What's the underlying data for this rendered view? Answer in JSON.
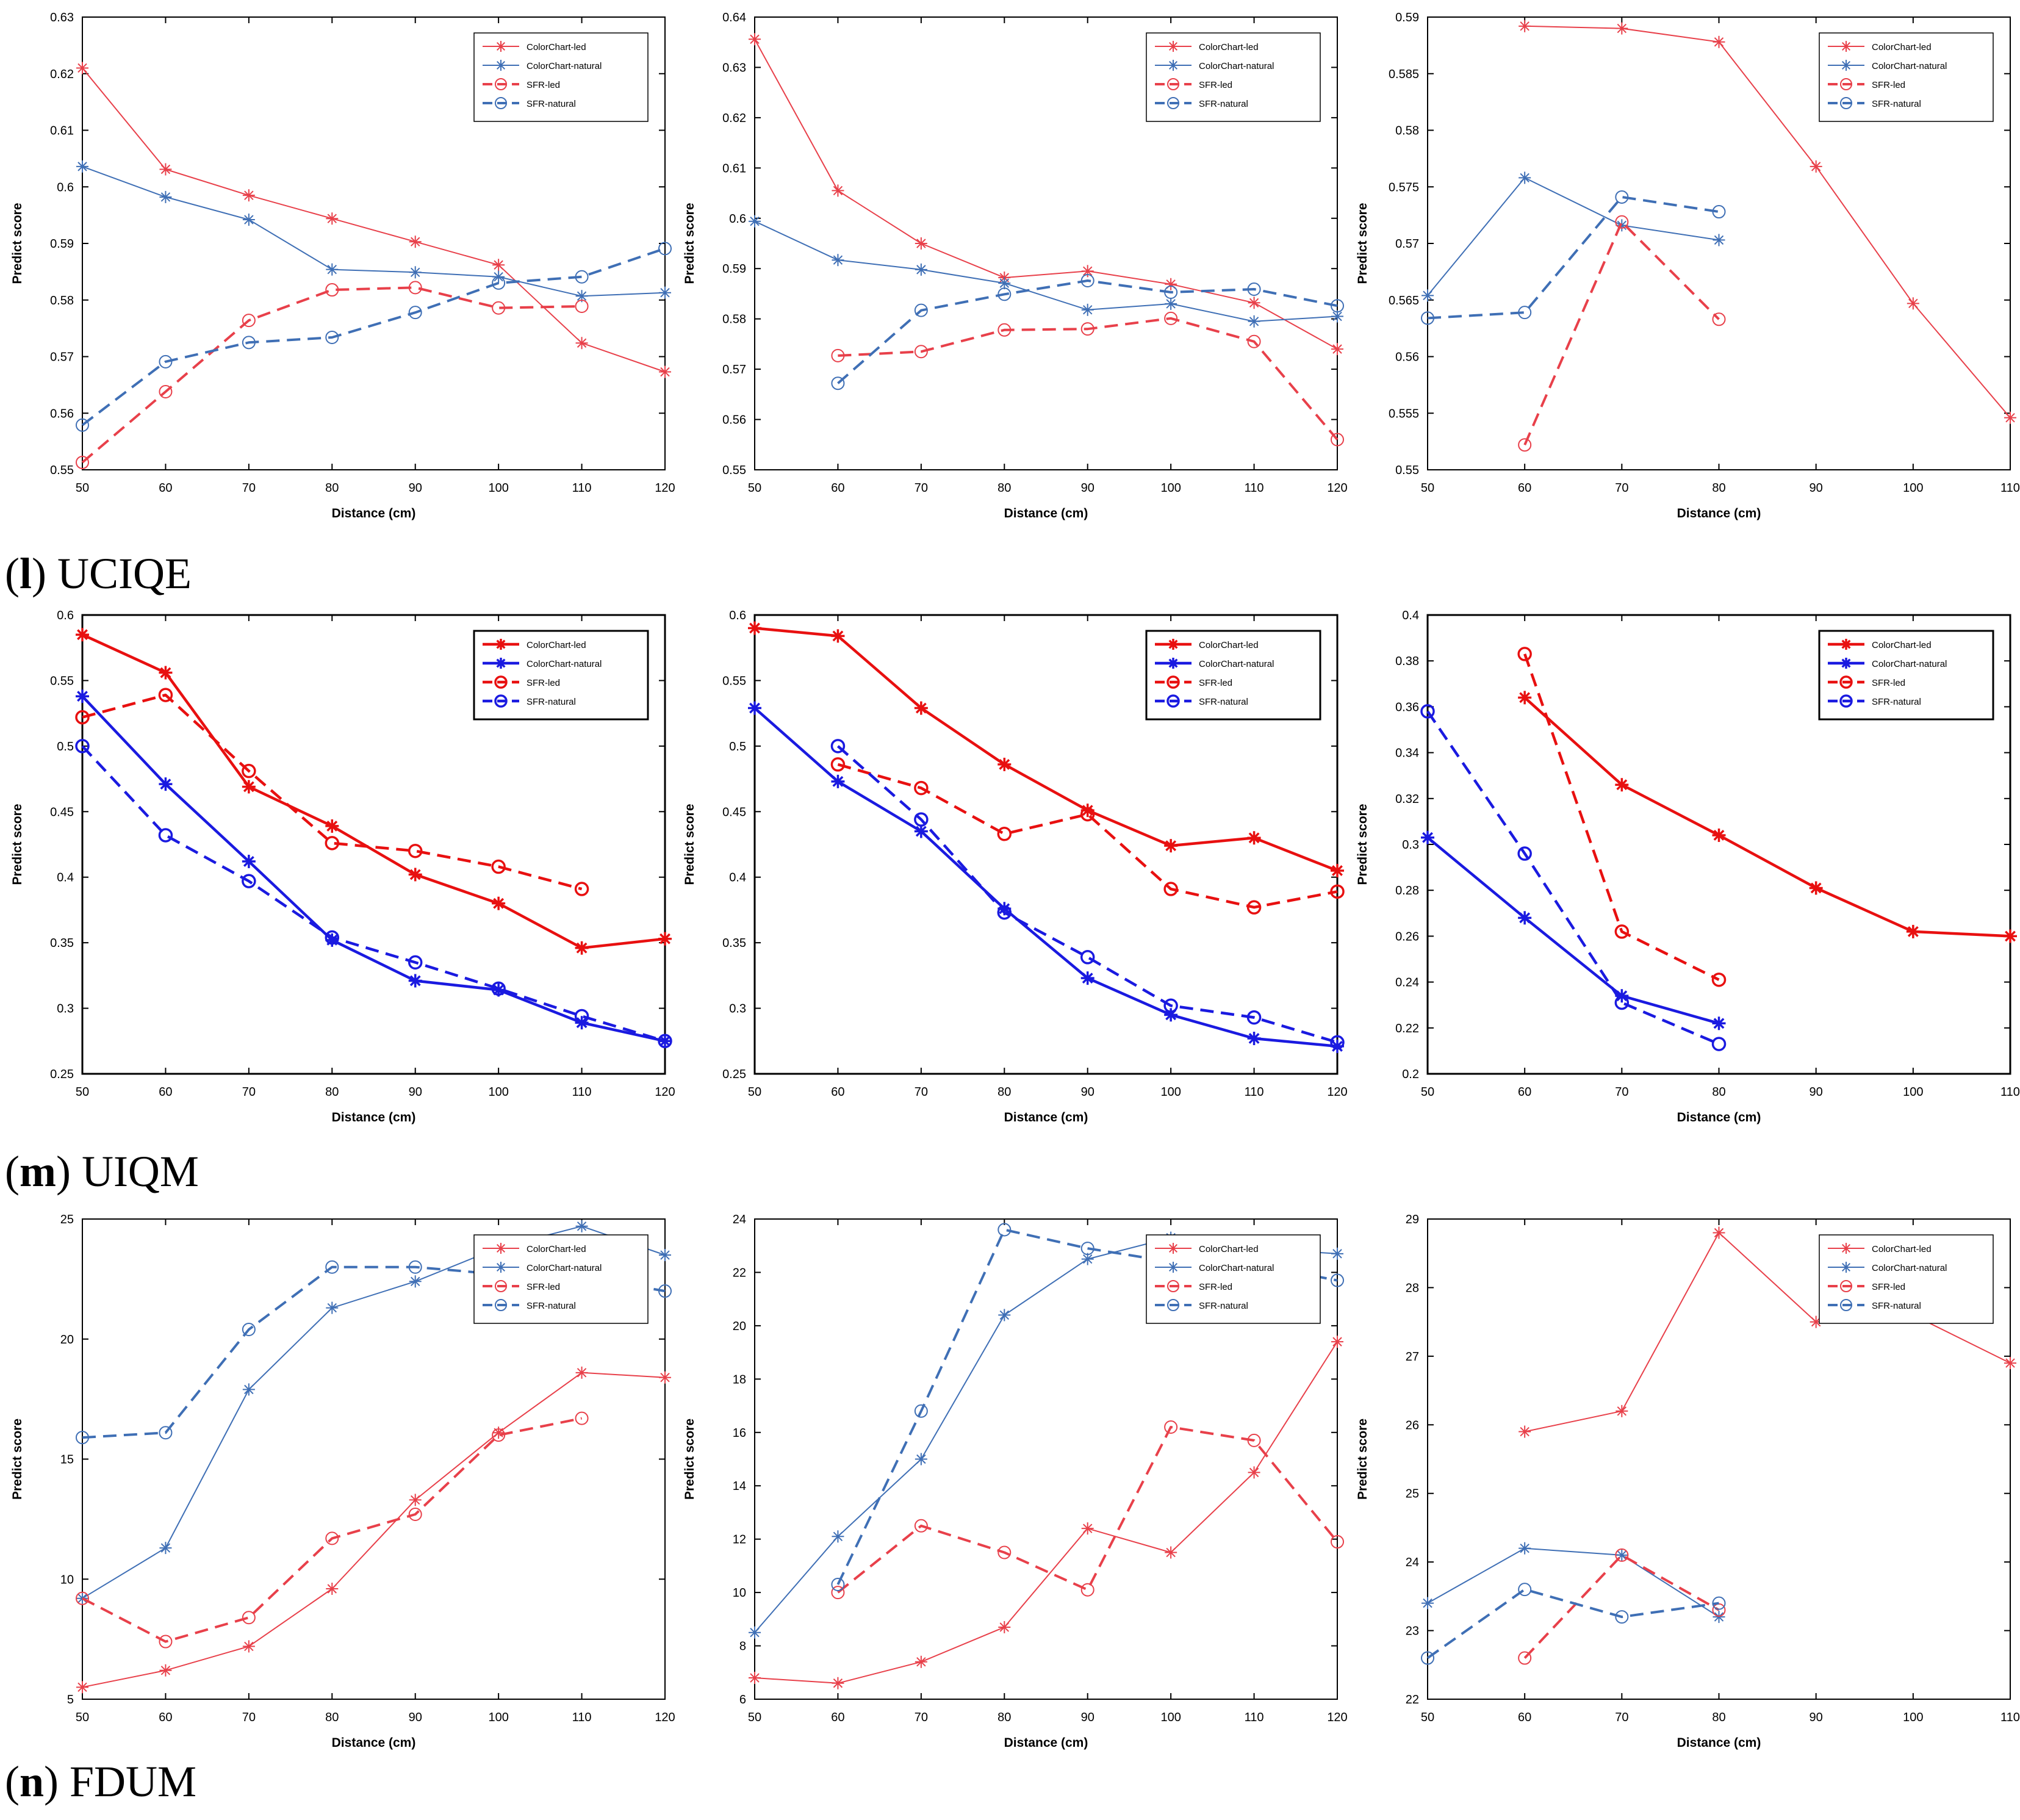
{
  "colors": {
    "thin_red": "#e8404a",
    "thin_blue": "#3f6fb5",
    "bold_red": "#e81010",
    "bold_blue": "#1a1ae0"
  },
  "legend_labels": [
    "ColorChart-led",
    "ColorChart-natural",
    "SFR-led",
    "SFR-natural"
  ],
  "captions": [
    {
      "letter": "l",
      "open": "(",
      "close": ")",
      "text": " UCIQE"
    },
    {
      "letter": "m",
      "open": "(",
      "close": ")",
      "text": " UIQM"
    },
    {
      "letter": "n",
      "open": "(",
      "close": ")",
      "text": " FDUM"
    }
  ],
  "chart_data": [
    {
      "type": "line",
      "row": 0,
      "col": 0,
      "style": "thin",
      "xlabel": "Distance (cm)",
      "ylabel": "Predict score",
      "xlim": [
        50,
        120
      ],
      "ylim": [
        0.55,
        0.63
      ],
      "xticks": [
        50,
        60,
        70,
        80,
        90,
        100,
        110,
        120
      ],
      "yticks": [
        0.55,
        0.56,
        0.57,
        0.58,
        0.59,
        0.6,
        0.61,
        0.62,
        0.63
      ],
      "ytick_labels": [
        "0.55",
        "0.56",
        "0.57",
        "0.58",
        "0.59",
        "0.6",
        "0.61",
        "0.62",
        "0.63"
      ],
      "series": [
        {
          "name": "ColorChart-led",
          "x": [
            50,
            60,
            70,
            80,
            90,
            100,
            110,
            120
          ],
          "values": [
            0.621,
            0.6031,
            0.5985,
            0.5944,
            0.5903,
            0.5862,
            0.5724,
            0.5673
          ]
        },
        {
          "name": "ColorChart-natural",
          "x": [
            50,
            60,
            70,
            80,
            90,
            100,
            110,
            120
          ],
          "values": [
            0.6036,
            0.5982,
            0.5942,
            0.5854,
            0.5849,
            0.5841,
            0.5807,
            0.5813
          ]
        },
        {
          "name": "SFR-led",
          "x": [
            50,
            60,
            70,
            80,
            90,
            100,
            110
          ],
          "values": [
            0.5513,
            0.5638,
            0.5764,
            0.5818,
            0.5822,
            0.5786,
            0.5789
          ]
        },
        {
          "name": "SFR-natural",
          "x": [
            50,
            60,
            70,
            80,
            90,
            100,
            110,
            120
          ],
          "values": [
            0.5579,
            0.5691,
            0.5725,
            0.5734,
            0.5778,
            0.583,
            0.5841,
            0.5891
          ]
        }
      ]
    },
    {
      "type": "line",
      "row": 0,
      "col": 1,
      "style": "thin",
      "xlabel": "Distance (cm)",
      "ylabel": "Predict score",
      "xlim": [
        50,
        120
      ],
      "ylim": [
        0.55,
        0.64
      ],
      "xticks": [
        50,
        60,
        70,
        80,
        90,
        100,
        110,
        120
      ],
      "yticks": [
        0.55,
        0.56,
        0.57,
        0.58,
        0.59,
        0.6,
        0.61,
        0.62,
        0.63,
        0.64
      ],
      "ytick_labels": [
        "0.55",
        "0.56",
        "0.57",
        "0.58",
        "0.59",
        "0.6",
        "0.61",
        "0.62",
        "0.63",
        "0.64"
      ],
      "series": [
        {
          "name": "ColorChart-led",
          "x": [
            50,
            60,
            70,
            80,
            90,
            100,
            110,
            120
          ],
          "values": [
            0.6356,
            0.6055,
            0.595,
            0.5882,
            0.5895,
            0.5869,
            0.5832,
            0.574
          ]
        },
        {
          "name": "ColorChart-natural",
          "x": [
            50,
            60,
            70,
            80,
            90,
            100,
            110,
            120
          ],
          "values": [
            0.5994,
            0.5917,
            0.5898,
            0.5871,
            0.5818,
            0.583,
            0.5795,
            0.5805
          ]
        },
        {
          "name": "SFR-led",
          "x": [
            60,
            70,
            80,
            90,
            100,
            110,
            120
          ],
          "values": [
            0.5727,
            0.5735,
            0.5778,
            0.578,
            0.5801,
            0.5755,
            0.556
          ]
        },
        {
          "name": "SFR-natural",
          "x": [
            60,
            70,
            80,
            90,
            100,
            110,
            120
          ],
          "values": [
            0.5672,
            0.5817,
            0.5849,
            0.5876,
            0.5853,
            0.5859,
            0.5826
          ]
        }
      ]
    },
    {
      "type": "line",
      "row": 0,
      "col": 2,
      "style": "thin",
      "xlabel": "Distance (cm)",
      "ylabel": "Predict score",
      "xlim": [
        50,
        110
      ],
      "ylim": [
        0.55,
        0.59
      ],
      "xticks": [
        50,
        60,
        70,
        80,
        90,
        100,
        110
      ],
      "yticks": [
        0.55,
        0.555,
        0.56,
        0.565,
        0.57,
        0.575,
        0.58,
        0.585,
        0.59
      ],
      "ytick_labels": [
        "0.55",
        "0.555",
        "0.56",
        "0.565",
        "0.57",
        "0.575",
        "0.58",
        "0.585",
        "0.59"
      ],
      "series": [
        {
          "name": "ColorChart-led",
          "x": [
            60,
            70,
            80,
            90,
            100,
            110
          ],
          "values": [
            0.5892,
            0.589,
            0.5878,
            0.5768,
            0.5647,
            0.5546
          ]
        },
        {
          "name": "ColorChart-natural",
          "x": [
            50,
            60,
            70,
            80
          ],
          "values": [
            0.5654,
            0.5758,
            0.5716,
            0.5703
          ]
        },
        {
          "name": "SFR-led",
          "x": [
            60,
            70,
            80
          ],
          "values": [
            0.5522,
            0.5719,
            0.5633
          ]
        },
        {
          "name": "SFR-natural",
          "x": [
            50,
            60,
            70,
            80
          ],
          "values": [
            0.5634,
            0.5639,
            0.5741,
            0.5728
          ]
        }
      ]
    },
    {
      "type": "line",
      "row": 1,
      "col": 0,
      "style": "bold",
      "xlabel": "Distance (cm)",
      "ylabel": "Predict score",
      "xlim": [
        50,
        120
      ],
      "ylim": [
        0.25,
        0.6
      ],
      "xticks": [
        50,
        60,
        70,
        80,
        90,
        100,
        110,
        120
      ],
      "yticks": [
        0.25,
        0.3,
        0.35,
        0.4,
        0.45,
        0.5,
        0.55,
        0.6
      ],
      "ytick_labels": [
        "0.25",
        "0.3",
        "0.35",
        "0.4",
        "0.45",
        "0.5",
        "0.55",
        "0.6"
      ],
      "series": [
        {
          "name": "ColorChart-led",
          "x": [
            50,
            60,
            70,
            80,
            90,
            100,
            110,
            120
          ],
          "values": [
            0.585,
            0.556,
            0.469,
            0.439,
            0.402,
            0.38,
            0.346,
            0.353
          ]
        },
        {
          "name": "ColorChart-natural",
          "x": [
            50,
            60,
            70,
            80,
            90,
            100,
            110,
            120
          ],
          "values": [
            0.538,
            0.471,
            0.412,
            0.352,
            0.321,
            0.314,
            0.289,
            0.275
          ]
        },
        {
          "name": "SFR-led",
          "x": [
            50,
            60,
            70,
            80,
            90,
            100,
            110
          ],
          "values": [
            0.522,
            0.539,
            0.481,
            0.426,
            0.42,
            0.408,
            0.391
          ]
        },
        {
          "name": "SFR-natural",
          "x": [
            50,
            60,
            70,
            80,
            90,
            100,
            110,
            120
          ],
          "values": [
            0.5,
            0.432,
            0.397,
            0.354,
            0.335,
            0.315,
            0.294,
            0.275
          ]
        }
      ]
    },
    {
      "type": "line",
      "row": 1,
      "col": 1,
      "style": "bold",
      "xlabel": "Distance (cm)",
      "ylabel": "Predict score",
      "xlim": [
        50,
        120
      ],
      "ylim": [
        0.25,
        0.6
      ],
      "xticks": [
        50,
        60,
        70,
        80,
        90,
        100,
        110,
        120
      ],
      "yticks": [
        0.25,
        0.3,
        0.35,
        0.4,
        0.45,
        0.5,
        0.55,
        0.6
      ],
      "ytick_labels": [
        "0.25",
        "0.3",
        "0.35",
        "0.4",
        "0.45",
        "0.5",
        "0.55",
        "0.6"
      ],
      "series": [
        {
          "name": "ColorChart-led",
          "x": [
            50,
            60,
            70,
            80,
            90,
            100,
            110,
            120
          ],
          "values": [
            0.59,
            0.584,
            0.529,
            0.486,
            0.451,
            0.424,
            0.43,
            0.405
          ]
        },
        {
          "name": "ColorChart-natural",
          "x": [
            50,
            60,
            70,
            80,
            90,
            100,
            110,
            120
          ],
          "values": [
            0.529,
            0.473,
            0.435,
            0.376,
            0.323,
            0.295,
            0.277,
            0.271
          ]
        },
        {
          "name": "SFR-led",
          "x": [
            60,
            70,
            80,
            90,
            100,
            110,
            120
          ],
          "values": [
            0.486,
            0.468,
            0.433,
            0.448,
            0.391,
            0.377,
            0.389
          ]
        },
        {
          "name": "SFR-natural",
          "x": [
            60,
            70,
            80,
            90,
            100,
            110,
            120
          ],
          "values": [
            0.5,
            0.444,
            0.373,
            0.339,
            0.302,
            0.293,
            0.274
          ]
        }
      ]
    },
    {
      "type": "line",
      "row": 1,
      "col": 2,
      "style": "bold",
      "xlabel": "Distance (cm)",
      "ylabel": "Predict score",
      "xlim": [
        50,
        110
      ],
      "ylim": [
        0.2,
        0.4
      ],
      "xticks": [
        50,
        60,
        70,
        80,
        90,
        100,
        110
      ],
      "yticks": [
        0.2,
        0.22,
        0.24,
        0.26,
        0.28,
        0.3,
        0.32,
        0.34,
        0.36,
        0.38,
        0.4
      ],
      "ytick_labels": [
        "0.2",
        "0.22",
        "0.24",
        "0.26",
        "0.28",
        "0.3",
        "0.32",
        "0.34",
        "0.36",
        "0.38",
        "0.4"
      ],
      "series": [
        {
          "name": "ColorChart-led",
          "x": [
            60,
            70,
            80,
            90,
            100,
            110
          ],
          "values": [
            0.364,
            0.326,
            0.304,
            0.281,
            0.262,
            0.26
          ]
        },
        {
          "name": "ColorChart-natural",
          "x": [
            50,
            60,
            70,
            80
          ],
          "values": [
            0.303,
            0.268,
            0.234,
            0.222
          ]
        },
        {
          "name": "SFR-led",
          "x": [
            60,
            70,
            80
          ],
          "values": [
            0.383,
            0.262,
            0.241
          ]
        },
        {
          "name": "SFR-natural",
          "x": [
            50,
            60,
            70,
            80
          ],
          "values": [
            0.358,
            0.296,
            0.231,
            0.213
          ]
        }
      ]
    },
    {
      "type": "line",
      "row": 2,
      "col": 0,
      "style": "thin",
      "xlabel": "Distance (cm)",
      "ylabel": "Predict score",
      "xlim": [
        50,
        120
      ],
      "ylim": [
        5,
        25
      ],
      "xticks": [
        50,
        60,
        70,
        80,
        90,
        100,
        110,
        120
      ],
      "yticks": [
        5,
        10,
        15,
        20,
        25
      ],
      "ytick_labels": [
        "5",
        "10",
        "15",
        "20",
        "25"
      ],
      "series": [
        {
          "name": "ColorChart-led",
          "x": [
            50,
            60,
            70,
            80,
            90,
            100,
            110,
            120
          ],
          "values": [
            5.5,
            6.2,
            7.2,
            9.6,
            13.3,
            16.1,
            18.6,
            18.4
          ]
        },
        {
          "name": "ColorChart-natural",
          "x": [
            50,
            60,
            70,
            80,
            90,
            100,
            110,
            120
          ],
          "values": [
            9.2,
            11.3,
            17.9,
            21.3,
            22.4,
            23.8,
            24.7,
            23.5
          ]
        },
        {
          "name": "SFR-led",
          "x": [
            50,
            60,
            70,
            80,
            90,
            100,
            110
          ],
          "values": [
            9.2,
            7.4,
            8.4,
            11.7,
            12.7,
            16.0,
            16.7
          ]
        },
        {
          "name": "SFR-natural",
          "x": [
            50,
            60,
            70,
            80,
            90,
            100,
            110,
            120
          ],
          "values": [
            15.9,
            16.1,
            20.4,
            23.0,
            23.0,
            22.7,
            22.6,
            22.0
          ]
        }
      ]
    },
    {
      "type": "line",
      "row": 2,
      "col": 1,
      "style": "thin",
      "xlabel": "Distance (cm)",
      "ylabel": "Predict score",
      "xlim": [
        50,
        120
      ],
      "ylim": [
        6,
        24
      ],
      "xticks": [
        50,
        60,
        70,
        80,
        90,
        100,
        110,
        120
      ],
      "yticks": [
        6,
        8,
        10,
        12,
        14,
        16,
        18,
        20,
        22,
        24
      ],
      "ytick_labels": [
        "6",
        "8",
        "10",
        "12",
        "14",
        "16",
        "18",
        "20",
        "22",
        "24"
      ],
      "series": [
        {
          "name": "ColorChart-led",
          "x": [
            50,
            60,
            70,
            80,
            90,
            100,
            110,
            120
          ],
          "values": [
            6.8,
            6.6,
            7.4,
            8.7,
            12.4,
            11.5,
            14.5,
            19.4
          ]
        },
        {
          "name": "ColorChart-natural",
          "x": [
            50,
            60,
            70,
            80,
            90,
            100,
            110,
            120
          ],
          "values": [
            8.5,
            12.1,
            15.0,
            20.4,
            22.5,
            23.3,
            22.9,
            22.7
          ]
        },
        {
          "name": "SFR-led",
          "x": [
            60,
            70,
            80,
            90,
            100,
            110,
            120
          ],
          "values": [
            10.0,
            12.5,
            11.5,
            10.1,
            16.2,
            15.7,
            11.9
          ]
        },
        {
          "name": "SFR-natural",
          "x": [
            60,
            70,
            80,
            90,
            100,
            110,
            120
          ],
          "values": [
            10.3,
            16.8,
            23.6,
            22.9,
            22.4,
            22.3,
            21.7
          ]
        }
      ]
    },
    {
      "type": "line",
      "row": 2,
      "col": 2,
      "style": "thin",
      "xlabel": "Distance (cm)",
      "ylabel": "Predict score",
      "xlim": [
        50,
        110
      ],
      "ylim": [
        22,
        29
      ],
      "xticks": [
        50,
        60,
        70,
        80,
        90,
        100,
        110
      ],
      "yticks": [
        22,
        23,
        24,
        25,
        26,
        27,
        28,
        29
      ],
      "ytick_labels": [
        "22",
        "23",
        "24",
        "25",
        "26",
        "27",
        "28",
        "29"
      ],
      "series": [
        {
          "name": "ColorChart-led",
          "x": [
            60,
            70,
            80,
            90,
            100,
            110
          ],
          "values": [
            25.9,
            26.2,
            28.8,
            27.5,
            27.6,
            26.9
          ]
        },
        {
          "name": "ColorChart-natural",
          "x": [
            50,
            60,
            70,
            80
          ],
          "values": [
            23.4,
            24.2,
            24.1,
            23.2
          ]
        },
        {
          "name": "SFR-led",
          "x": [
            60,
            70,
            80
          ],
          "values": [
            22.6,
            24.1,
            23.3
          ]
        },
        {
          "name": "SFR-natural",
          "x": [
            50,
            60,
            70,
            80
          ],
          "values": [
            22.6,
            23.6,
            23.2,
            23.4
          ]
        }
      ]
    }
  ]
}
